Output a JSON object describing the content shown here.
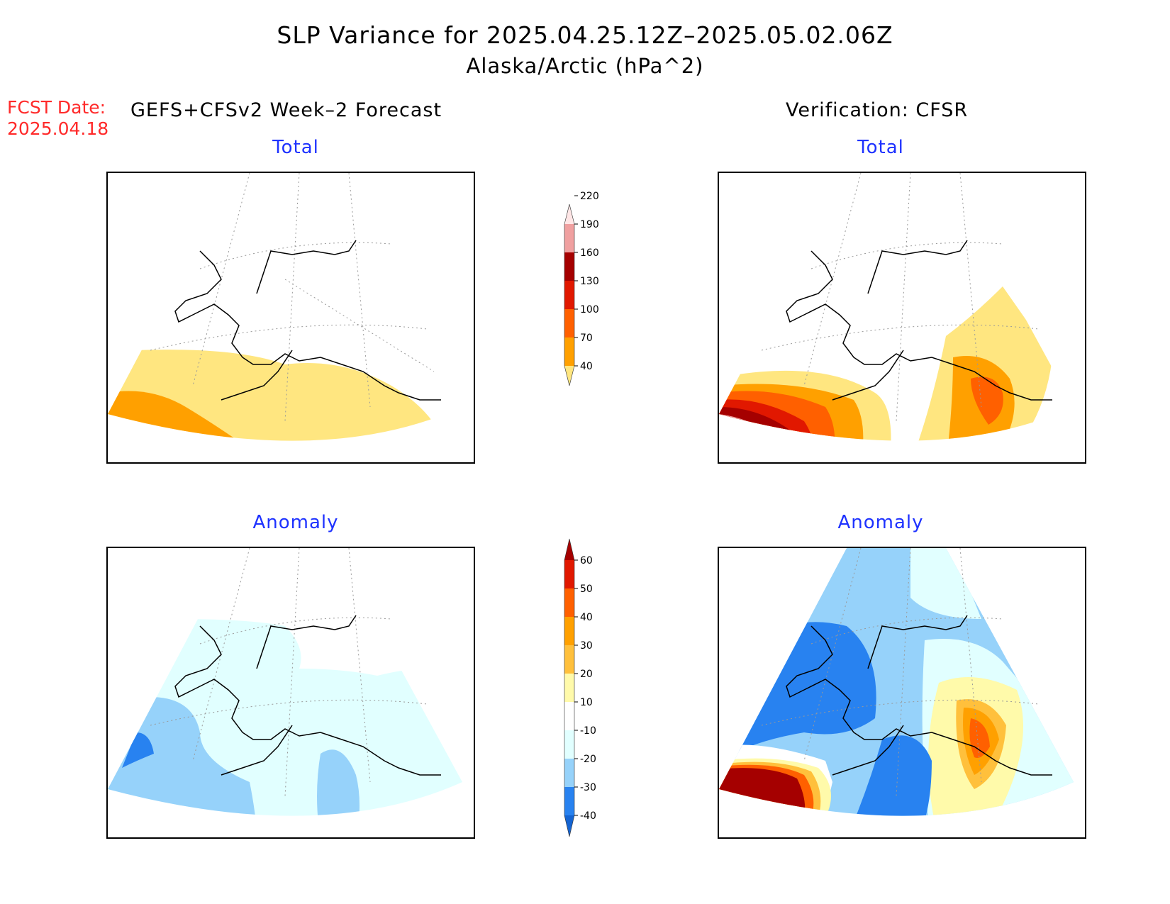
{
  "title": {
    "line1": "SLP Variance for 2025.04.25.12Z–2025.05.02.06Z",
    "line2": "Alaska/Arctic (hPa^2)"
  },
  "forecast_info": {
    "label": "FCST Date:",
    "date": "2025.04.18"
  },
  "headers": {
    "left": "GEFS+CFSv2 Week–2 Forecast",
    "right": "Verification: CFSR"
  },
  "panels": {
    "forecast_total": "Total",
    "verification_total": "Total",
    "forecast_anomaly": "Anomaly",
    "verification_anomaly": "Anomaly"
  },
  "colorbars": {
    "total": {
      "levels": [
        "40",
        "70",
        "100",
        "130",
        "160",
        "190",
        "220"
      ],
      "colors": [
        "#ffe680",
        "#ffa000",
        "#ff6000",
        "#e11800",
        "#a50000",
        "#f0a0a0",
        "#ffe6e6"
      ]
    },
    "anomaly": {
      "levels": [
        "-40",
        "-30",
        "-20",
        "-10",
        "10",
        "20",
        "30",
        "40",
        "50",
        "60"
      ],
      "colors": [
        "#1464d2",
        "#2882f0",
        "#96d2fa",
        "#e1ffff",
        "#ffffff",
        "#fffaaa",
        "#ffc03c",
        "#ffa000",
        "#ff6000",
        "#e11800",
        "#a50000"
      ]
    }
  }
}
